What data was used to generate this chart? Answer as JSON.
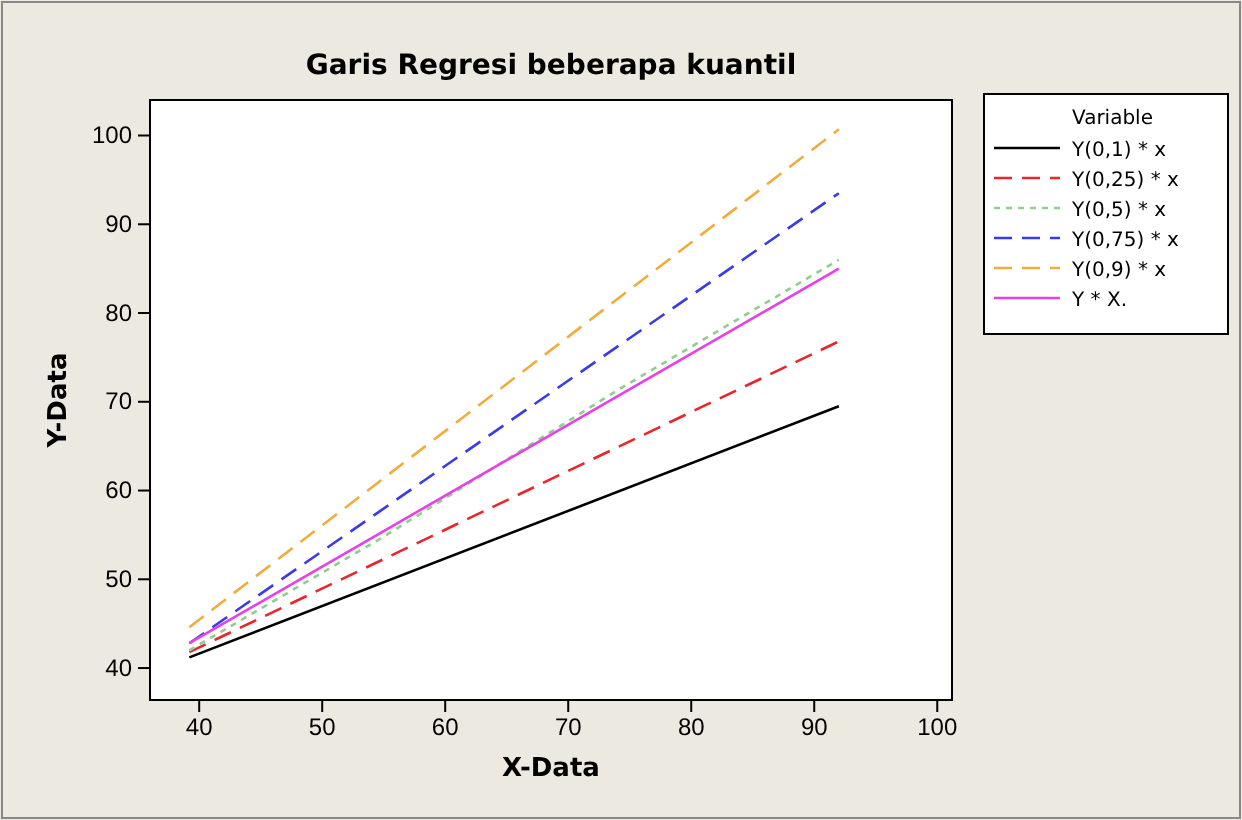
{
  "chart_data": {
    "type": "line",
    "title": "Garis Regresi beberapa kuantil",
    "xlabel": "X-Data",
    "ylabel": "Y-Data",
    "legend_title": "Variable",
    "legend": "right",
    "grid": false,
    "marker": "none",
    "xlim": [
      36,
      101.2
    ],
    "xticks": [
      40,
      50,
      60,
      70,
      80,
      90,
      100
    ],
    "ylim": [
      36.4,
      104
    ],
    "yticks": [
      40,
      50,
      60,
      70,
      80,
      90,
      100
    ],
    "series": [
      {
        "name": "Y(0,1) * x",
        "color": "#000000",
        "line_style": "solid",
        "x": [
          39.2,
          92
        ],
        "values": [
          41.2,
          69.5
        ]
      },
      {
        "name": "Y(0,25) * x",
        "color": "#e8262b",
        "line_style": "dashed",
        "x": [
          39.2,
          92
        ],
        "values": [
          41.8,
          76.8
        ]
      },
      {
        "name": "Y(0,5) * x",
        "color": "#8fce8f",
        "line_style": "dotted",
        "x": [
          39.2,
          55,
          74,
          92
        ],
        "values": [
          42,
          54.8,
          71.3,
          86
        ]
      },
      {
        "name": "Y(0,75) * x",
        "color": "#3a3ae8",
        "line_style": "dashed",
        "x": [
          39.2,
          92
        ],
        "values": [
          42.8,
          93.5
        ]
      },
      {
        "name": "Y(0,9) * x",
        "color": "#f0ac3c",
        "line_style": "dashed",
        "x": [
          39.2,
          92
        ],
        "values": [
          44.6,
          100.7
        ]
      },
      {
        "name": "Y * X.",
        "color": "#e640e6",
        "line_style": "solid",
        "x": [
          39.2,
          92
        ],
        "values": [
          42.8,
          85
        ]
      }
    ]
  }
}
